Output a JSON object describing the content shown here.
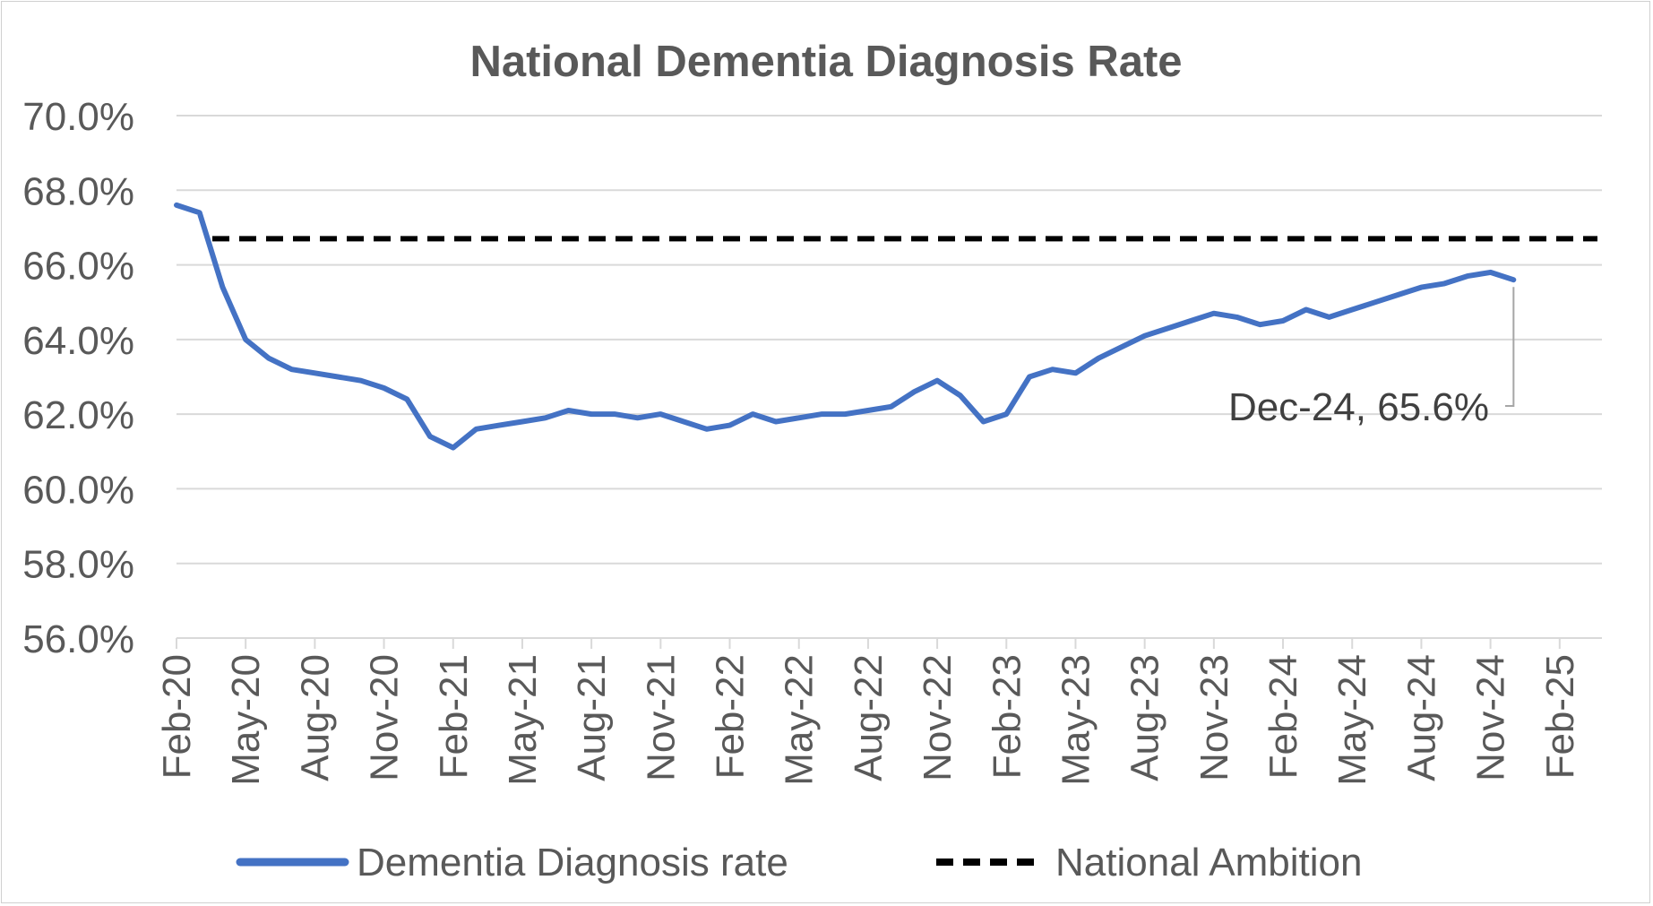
{
  "chart_data": {
    "type": "line",
    "title": "National Dementia Diagnosis Rate",
    "xlabel": "",
    "ylabel": "",
    "ylim": [
      56.0,
      70.0
    ],
    "y_ticks": [
      "70.0%",
      "68.0%",
      "66.0%",
      "64.0%",
      "62.0%",
      "60.0%",
      "58.0%",
      "56.0%"
    ],
    "x_ticks": [
      "Feb-20",
      "May-20",
      "Aug-20",
      "Nov-20",
      "Feb-21",
      "May-21",
      "Aug-21",
      "Nov-21",
      "Feb-22",
      "May-22",
      "Aug-22",
      "Nov-22",
      "Feb-23",
      "May-23",
      "Aug-23",
      "Nov-23",
      "Feb-24",
      "May-24",
      "Aug-24",
      "Nov-24",
      "Feb-25"
    ],
    "grid": true,
    "legend_position": "bottom",
    "series": [
      {
        "name": "Dementia Diagnosis rate",
        "color": "#4472c4",
        "style": "solid",
        "x": [
          "Feb-20",
          "Mar-20",
          "Apr-20",
          "May-20",
          "Jun-20",
          "Jul-20",
          "Aug-20",
          "Sep-20",
          "Oct-20",
          "Nov-20",
          "Dec-20",
          "Jan-21",
          "Feb-21",
          "Mar-21",
          "Apr-21",
          "May-21",
          "Jun-21",
          "Jul-21",
          "Aug-21",
          "Sep-21",
          "Oct-21",
          "Nov-21",
          "Dec-21",
          "Jan-22",
          "Feb-22",
          "Mar-22",
          "Apr-22",
          "May-22",
          "Jun-22",
          "Jul-22",
          "Aug-22",
          "Sep-22",
          "Oct-22",
          "Nov-22",
          "Dec-22",
          "Jan-23",
          "Feb-23",
          "Mar-23",
          "Apr-23",
          "May-23",
          "Jun-23",
          "Jul-23",
          "Aug-23",
          "Sep-23",
          "Oct-23",
          "Nov-23",
          "Dec-23",
          "Jan-24",
          "Feb-24",
          "Mar-24",
          "Apr-24",
          "May-24",
          "Jun-24",
          "Jul-24",
          "Aug-24",
          "Sep-24",
          "Oct-24",
          "Nov-24",
          "Dec-24"
        ],
        "values": [
          67.6,
          67.4,
          65.4,
          64.0,
          63.5,
          63.2,
          63.1,
          63.0,
          62.9,
          62.7,
          62.4,
          61.4,
          61.1,
          61.6,
          61.7,
          61.8,
          61.9,
          62.1,
          62.0,
          62.0,
          61.9,
          62.0,
          61.8,
          61.6,
          61.7,
          62.0,
          61.8,
          61.9,
          62.0,
          62.0,
          62.1,
          62.2,
          62.6,
          62.9,
          62.5,
          61.8,
          62.0,
          63.0,
          63.2,
          63.1,
          63.5,
          63.8,
          64.1,
          64.3,
          64.5,
          64.7,
          64.6,
          64.4,
          64.5,
          64.8,
          64.6,
          64.8,
          65.0,
          65.2,
          65.4,
          65.5,
          65.7,
          65.8,
          65.6
        ]
      },
      {
        "name": "National Ambition",
        "color": "#000000",
        "style": "dashed",
        "values": [
          66.7
        ]
      }
    ],
    "annotations": [
      {
        "text": "Dec-24, 65.6%",
        "x": "Dec-24",
        "y": 65.6
      }
    ]
  }
}
